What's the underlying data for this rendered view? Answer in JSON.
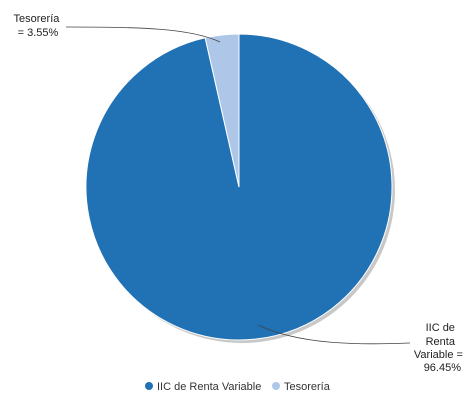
{
  "chart_data": {
    "type": "pie",
    "title": "",
    "slices": [
      {
        "name": "IIC de Renta Variable",
        "value": 96.45,
        "color": "#2171b5",
        "label_lines": [
          "IIC de",
          "Renta",
          "Variable =",
          "96.45%"
        ]
      },
      {
        "name": "Tesorería",
        "value": 3.55,
        "color": "#aec7e8",
        "label_lines": [
          "Tesorería",
          "= 3.55%"
        ]
      }
    ],
    "legend": {
      "position": "bottom",
      "entries": [
        "IIC de Renta Variable",
        "Tesorería"
      ]
    }
  }
}
